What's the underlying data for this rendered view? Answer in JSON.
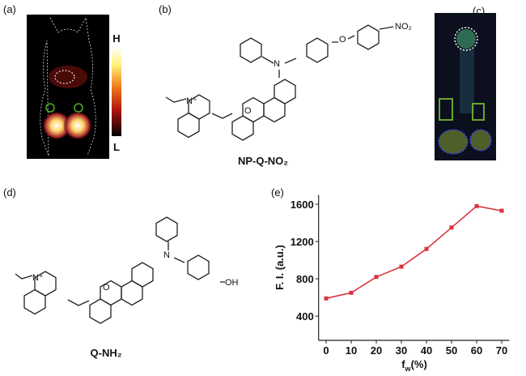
{
  "panels": {
    "a": {
      "label": "(a)",
      "high": "H",
      "low": "L"
    },
    "b": {
      "label": "(b)",
      "compound": "NP-Q-NO₂",
      "atoms": [
        "N⁺",
        "O",
        "N",
        "O",
        "NO₂"
      ]
    },
    "c": {
      "label": "(c)"
    },
    "d": {
      "label": "(d)",
      "compound": "Q-NH₂",
      "atoms": [
        "N⁺",
        "O",
        "N",
        "OH"
      ]
    }
  },
  "chart_data": {
    "type": "line",
    "label": "(e)",
    "x_label": [
      "f",
      "w",
      "(%)"
    ],
    "y_label": "F. I. (a.u.)",
    "x": [
      0,
      10,
      20,
      30,
      40,
      50,
      60,
      70
    ],
    "series": [
      {
        "color": "#d9343f",
        "values": [
          590,
          650,
          820,
          930,
          1120,
          1350,
          1580,
          1530
        ]
      }
    ],
    "xlim": [
      -3,
      73
    ],
    "ylim": [
      140,
      1700
    ],
    "xticks": [
      0,
      10,
      20,
      30,
      40,
      50,
      60,
      70
    ],
    "yticks": [
      400,
      800,
      1200,
      1600
    ]
  }
}
